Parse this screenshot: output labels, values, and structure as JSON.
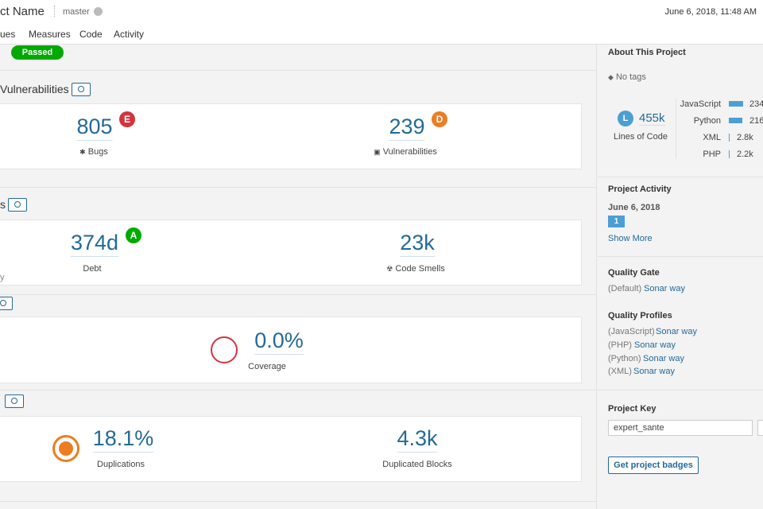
{
  "header": {
    "project": "ct Name",
    "branch": "master",
    "date": "June 6, 2018, 11:48 AM"
  },
  "nav": [
    "ues",
    "Measures",
    "Code",
    "Activity"
  ],
  "quality_gate": "Passed",
  "sections": [
    {
      "title": "Vulnerabilities",
      "metrics": [
        {
          "value": "805",
          "rating": "E",
          "label": "Bugs"
        },
        {
          "value": "239",
          "rating": "D",
          "label": "Vulnerabilities"
        }
      ]
    },
    {
      "title": "s",
      "note": "y",
      "metrics": [
        {
          "value": "374d",
          "rating": "A",
          "label": "Debt"
        },
        {
          "value": "23k",
          "label": "Code Smells"
        }
      ]
    },
    {
      "metrics": [
        {
          "value": "0.0%",
          "label": "Coverage"
        }
      ]
    },
    {
      "metrics": [
        {
          "value": "18.1%",
          "label": "Duplications"
        },
        {
          "value": "4.3k",
          "label": "Duplicated Blocks"
        }
      ]
    }
  ],
  "sidebar": {
    "about_title": "About This Project",
    "tags": "No tags",
    "loc_badge": "L",
    "loc": "455k",
    "loc_label": "Lines of Code",
    "languages": [
      {
        "name": "JavaScript",
        "value": "234"
      },
      {
        "name": "Python",
        "value": "216"
      },
      {
        "name": "XML",
        "value": "2.8k"
      },
      {
        "name": "PHP",
        "value": "2.2k"
      }
    ],
    "activity_title": "Project Activity",
    "activity_date": "June 6, 2018",
    "activity_count": "1",
    "show_more": "Show More",
    "gate_title": "Quality Gate",
    "gate_default": "(Default)",
    "gate_name": "Sonar way",
    "profiles_title": "Quality Profiles",
    "profiles": [
      {
        "lang": "(JavaScript)",
        "name": "Sonar way"
      },
      {
        "lang": "(PHP)",
        "name": "Sonar way"
      },
      {
        "lang": "(Python)",
        "name": "Sonar way"
      },
      {
        "lang": "(XML)",
        "name": "Sonar way"
      }
    ],
    "key_title": "Project Key",
    "key": "expert_sante",
    "badges": "Get project badges"
  }
}
